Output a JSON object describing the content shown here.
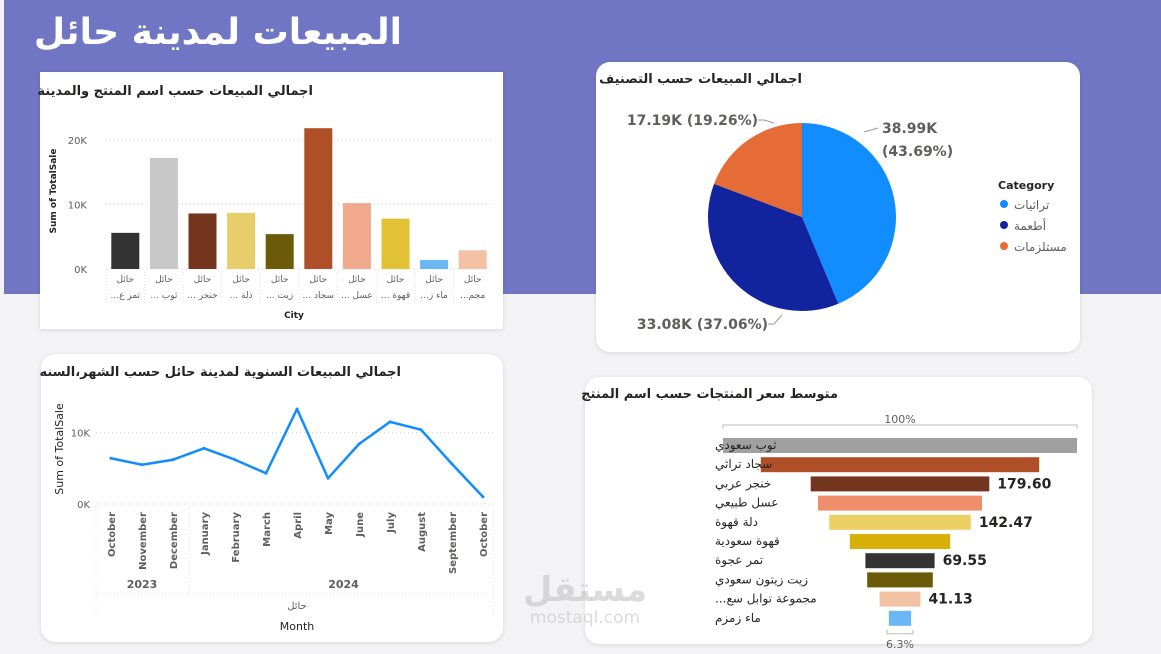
{
  "page": {
    "title": "المبيعات لمدينة حائل"
  },
  "watermark": {
    "logo": "مستقل",
    "domain": "mostaql.com"
  },
  "chart_data": [
    {
      "id": "sales_by_product_city",
      "type": "bar",
      "title": "اجمالي المبيعات حسب اسم المنتج والمدينة",
      "xlabel": "City",
      "ylabel": "Sum of TotalSale",
      "ylim": [
        0,
        24000
      ],
      "yticks": [
        "0K",
        "10K",
        "20K"
      ],
      "grid": true,
      "categories": [
        "حائل",
        "حائل",
        "حائل",
        "حائل",
        "حائل",
        "حائل",
        "حائل",
        "حائل",
        "حائل",
        "حائل"
      ],
      "subcategories": [
        "تمر ع...",
        "ثوب ...",
        "خنجر ...",
        "دلة ...",
        "زيت ...",
        "سجاد ...",
        "عسل ...",
        "قهوة ...",
        "ماء ز...",
        "مجم..."
      ],
      "values": [
        5600,
        17200,
        8600,
        8700,
        5400,
        21800,
        10200,
        7800,
        1400,
        2900
      ],
      "colors": [
        "#333333",
        "#c8c8c8",
        "#74351f",
        "#e8ce6a",
        "#6b5a08",
        "#ae4f27",
        "#f0a98a",
        "#e3c135",
        "#6ab7f4",
        "#f3c2a4"
      ]
    },
    {
      "id": "sales_by_category",
      "type": "pie",
      "title": "اجمالي المبيعات حسب التصنيف",
      "legend_title": "Category",
      "legend_position": "right",
      "slices": [
        {
          "name": "تراثيات",
          "value": 38.99,
          "label_value": "38.99K",
          "label_pct": "(43.69%)",
          "pct": 43.69,
          "color": "#118dff"
        },
        {
          "name": "أطعمة",
          "value": 33.08,
          "label_value": "33.08K",
          "label_pct": "(37.06%)",
          "pct": 37.06,
          "color": "#12239e"
        },
        {
          "name": "مستلزمات",
          "value": 17.19,
          "label_value": "17.19K",
          "label_pct": "(19.26%)",
          "pct": 19.26,
          "color": "#e66c37"
        }
      ]
    },
    {
      "id": "annual_sales_by_month",
      "type": "line",
      "title": "اجمالي المبيعات السنوية لمدينة حائل حسب الشهر،السنه",
      "xlabel": "Month",
      "ylabel": "Sum of TotalSale",
      "city_label": "حائل",
      "ylim": [
        0,
        14000
      ],
      "yticks": [
        "0K",
        "10K"
      ],
      "x": [
        "October",
        "November",
        "December",
        "January",
        "February",
        "March",
        "April",
        "May",
        "June",
        "July",
        "August",
        "September",
        "October"
      ],
      "year_groups": [
        {
          "year": "2023",
          "count": 3
        },
        {
          "year": "2024",
          "count": 10
        }
      ],
      "series": [
        {
          "values": [
            6400,
            5500,
            6200,
            7800,
            6200,
            4300,
            13300,
            3600,
            8400,
            11500,
            10400,
            5600,
            1000
          ],
          "color": "#118dff"
        }
      ]
    },
    {
      "id": "avg_price_by_product",
      "type": "bar",
      "orientation": "funnel",
      "title": "متوسط سعر المنتجات حسب اسم المنتج",
      "top_label": "100%",
      "bottom_label": "6.3%",
      "categories": [
        "ثوب سعودي",
        "سجاد تراثي",
        "خنجر عربي",
        "عسل طبيعي",
        "دلة قهوة",
        "قهوة سعودية",
        "تمر عجوة",
        "زيت زيتون سعودي",
        "مجموعة توابل سع...",
        "ماء زمزم"
      ],
      "values": [
        356,
        280,
        179.6,
        165,
        142.47,
        101,
        69.55,
        66,
        41.13,
        22.4
      ],
      "data_labels": [
        "",
        "",
        "179.60",
        "",
        "142.47",
        "",
        "69.55",
        "",
        "41.13",
        ""
      ],
      "colors": [
        "#a0a0a0",
        "#ae4f27",
        "#74351f",
        "#ef8e6a",
        "#ecd064",
        "#d8b00a",
        "#333333",
        "#6b5a08",
        "#f3c2a4",
        "#6ab7f4"
      ]
    }
  ]
}
